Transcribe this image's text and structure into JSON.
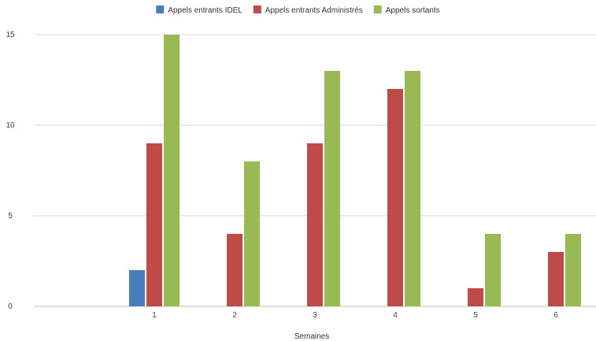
{
  "chart_data": {
    "type": "bar",
    "title": "",
    "xlabel": "Semaines",
    "ylabel": "",
    "categories": [
      "",
      "1",
      "2",
      "3",
      "4",
      "5",
      "6"
    ],
    "ylim": [
      0,
      15
    ],
    "yticks": [
      0,
      5,
      10,
      15
    ],
    "grid": true,
    "legend_position": "top",
    "series": [
      {
        "name": "Appels entrants IDEL",
        "color": "#4a7ebb",
        "values": [
          null,
          2,
          null,
          null,
          null,
          null,
          null
        ]
      },
      {
        "name": "Appels entrants Administrés",
        "color": "#be4b48",
        "values": [
          null,
          9,
          4,
          9,
          12,
          1,
          3
        ]
      },
      {
        "name": "Appels sortants",
        "color": "#98b954",
        "values": [
          null,
          15,
          8,
          13,
          13,
          4,
          4
        ]
      }
    ]
  }
}
